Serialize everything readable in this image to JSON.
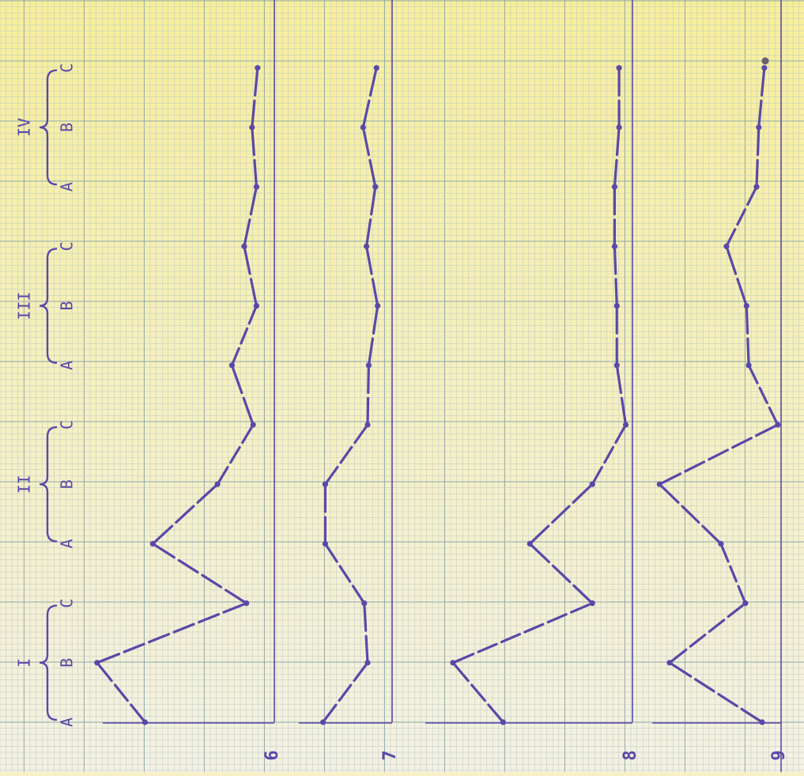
{
  "colors": {
    "paper_top": "#f8ee9a",
    "paper_bottom": "#f4f1e4",
    "grid_fine": "#b9c9c3",
    "grid_major": "#8fa8a8",
    "ink": "#5a48a8"
  },
  "chart_data": {
    "type": "line",
    "orientation": "rotated-90",
    "grid": true,
    "x_groups": [
      {
        "label": "I",
        "positions": [
          "A",
          "B",
          "C"
        ]
      },
      {
        "label": "II",
        "positions": [
          "A",
          "B",
          "C"
        ]
      },
      {
        "label": "III",
        "positions": [
          "A",
          "B",
          "C"
        ]
      },
      {
        "label": "IV",
        "positions": [
          "A",
          "B",
          "C"
        ]
      }
    ],
    "categories": [
      "A",
      "B",
      "C",
      "A",
      "B",
      "C",
      "A",
      "B",
      "C",
      "A",
      "B",
      "C"
    ],
    "panel_labels": [
      "6",
      "7",
      "8",
      "9"
    ],
    "panels": [
      {
        "label": "6",
        "values": [
          11.6,
          15.9,
          2.5,
          10.9,
          5.1,
          1.9,
          3.8,
          1.6,
          2.7,
          1.6,
          2.0,
          1.5
        ]
      },
      {
        "label": "7",
        "values": [
          6.2,
          2.2,
          2.5,
          6.0,
          6.0,
          2.2,
          2.1,
          1.3,
          2.3,
          1.5,
          2.6,
          1.4
        ]
      },
      {
        "label": "8",
        "values": [
          11.6,
          16.1,
          3.6,
          9.2,
          3.6,
          0.6,
          1.4,
          1.4,
          1.6,
          1.6,
          1.2,
          1.2
        ]
      },
      {
        "label": "9",
        "values": [
          1.7,
          10.0,
          3.2,
          5.4,
          10.9,
          0.3,
          2.9,
          3.1,
          4.9,
          2.2,
          2.0,
          1.5
        ]
      }
    ]
  }
}
